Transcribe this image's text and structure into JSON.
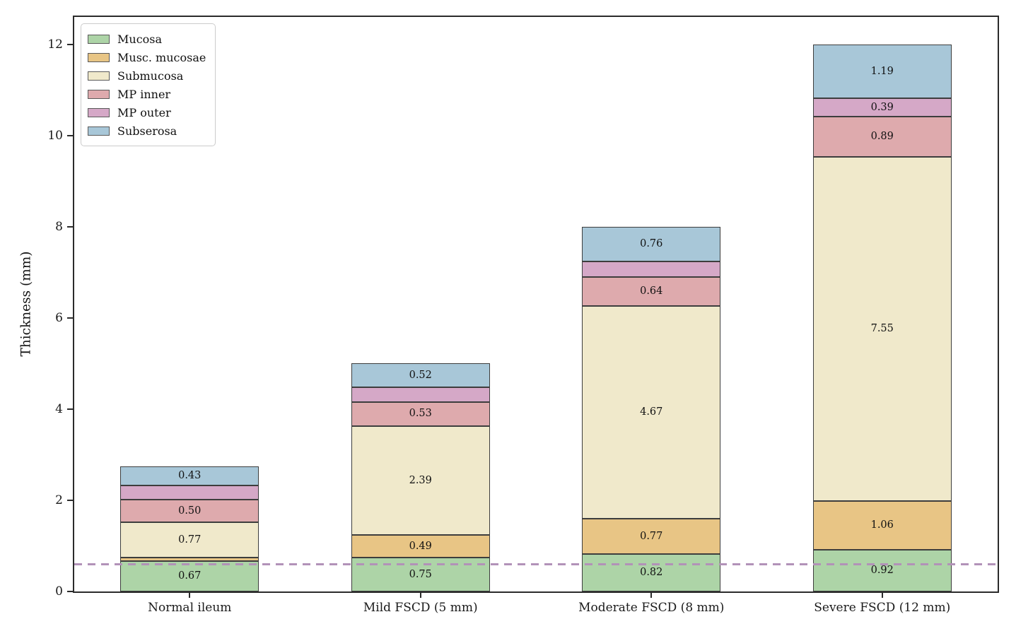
{
  "chart_data": {
    "type": "bar",
    "subtype": "stacked",
    "title": "",
    "xlabel": "",
    "ylabel": "Thickness (mm)",
    "ylim": [
      0,
      12.6
    ],
    "yticks": [
      0,
      2,
      4,
      6,
      8,
      10,
      12
    ],
    "grid": false,
    "legend_position": "upper left",
    "categories": [
      "Normal ileum",
      "Mild FSCD (5 mm)",
      "Moderate FSCD (8 mm)",
      "Severe FSCD (12 mm)"
    ],
    "series": [
      {
        "name": "Mucosa",
        "color": "#add4a7",
        "values": [
          0.67,
          0.75,
          0.82,
          0.92
        ],
        "labels": [
          "0.67",
          "0.75",
          "0.82",
          "0.92"
        ]
      },
      {
        "name": "Musc. mucosae",
        "color": "#e8c585",
        "values": [
          0.08,
          0.49,
          0.77,
          1.06
        ],
        "labels": [
          "",
          "0.49",
          "0.77",
          "1.06"
        ]
      },
      {
        "name": "Submucosa",
        "color": "#f0e9cb",
        "values": [
          0.77,
          2.39,
          4.67,
          7.55
        ],
        "labels": [
          "0.77",
          "2.39",
          "4.67",
          "7.55"
        ]
      },
      {
        "name": "MP inner",
        "color": "#deaaad",
        "values": [
          0.5,
          0.53,
          0.64,
          0.89
        ],
        "labels": [
          "0.50",
          "0.53",
          "0.64",
          "0.89"
        ]
      },
      {
        "name": "MP outer",
        "color": "#d5a8c7",
        "values": [
          0.3,
          0.32,
          0.34,
          0.39
        ],
        "labels": [
          "",
          "",
          "",
          "0.39"
        ]
      },
      {
        "name": "Subserosa",
        "color": "#a8c7d8",
        "values": [
          0.43,
          0.52,
          0.76,
          1.19
        ],
        "labels": [
          "0.43",
          "0.52",
          "0.76",
          "1.19"
        ]
      }
    ],
    "reference_line": {
      "y": 0.6,
      "color": "#b292b8",
      "style": "dashed"
    },
    "bar_edge_color": "#3d3d3d",
    "axis_color": "#2b2b2b"
  }
}
